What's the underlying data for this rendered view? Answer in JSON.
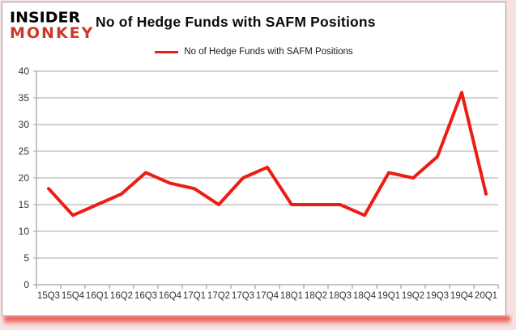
{
  "logo": {
    "line1": "INSIDER",
    "line2": "MONKEY",
    "line1_color": "#000000",
    "line2_color": "#cb3a27"
  },
  "header": {
    "title": "No of Hedge Funds with SAFM Positions"
  },
  "legend": {
    "label": "No of Hedge Funds with SAFM Positions",
    "swatch_color": "#ed1c14"
  },
  "chart_data": {
    "type": "line",
    "title": "No of Hedge Funds with SAFM Positions",
    "categories": [
      "15Q3",
      "15Q4",
      "16Q1",
      "16Q2",
      "16Q3",
      "16Q4",
      "17Q1",
      "17Q2",
      "17Q3",
      "17Q4",
      "18Q1",
      "18Q2",
      "18Q3",
      "18Q4",
      "19Q1",
      "19Q2",
      "19Q3",
      "19Q4",
      "20Q1"
    ],
    "series": [
      {
        "name": "No of Hedge Funds with SAFM Positions",
        "values": [
          18,
          13,
          15,
          17,
          21,
          19,
          18,
          15,
          20,
          22,
          15,
          15,
          15,
          13,
          21,
          20,
          24,
          36,
          17
        ]
      }
    ],
    "xlabel": "",
    "ylabel": "",
    "ylim": [
      0,
      40
    ],
    "yticks": [
      0,
      5,
      10,
      15,
      20,
      25,
      30,
      35,
      40
    ],
    "grid": true,
    "legend_position": "top-center",
    "line_color": "#ed1c14",
    "line_width": 4,
    "gridline_color": "#a6a6a6",
    "axis_color": "#8c8c8c",
    "tick_label_color": "#333333",
    "plot_background": "#ffffff"
  }
}
